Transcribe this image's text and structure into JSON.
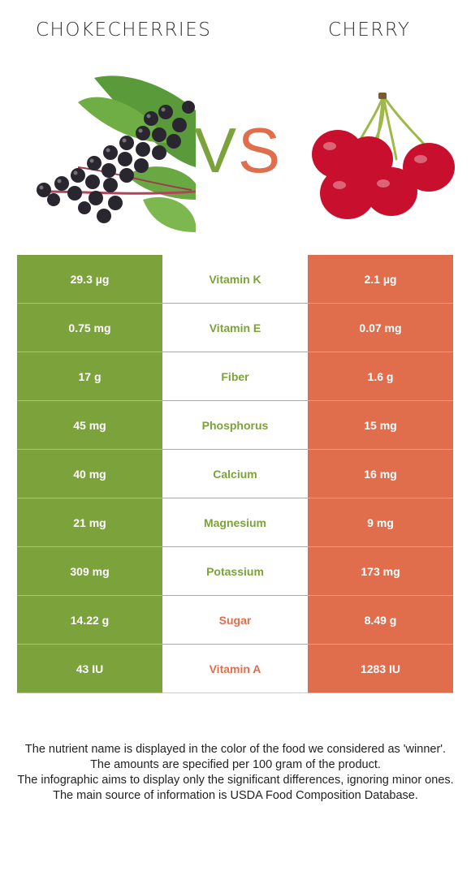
{
  "header": {
    "left_food": "CHOKECHERRIES",
    "right_food": "CHERRY",
    "vs_v": "V",
    "vs_s": "S"
  },
  "colors": {
    "winner_left": "#7ba23b",
    "winner_right": "#e06e4d"
  },
  "images": {
    "left": "chokecherries-photo",
    "right": "cherry-photo"
  },
  "nutrients": [
    {
      "left": "29.3 µg",
      "name": "Vitamin K",
      "right": "2.1 µg",
      "winner": "left"
    },
    {
      "left": "0.75 mg",
      "name": "Vitamin E",
      "right": "0.07 mg",
      "winner": "left"
    },
    {
      "left": "17 g",
      "name": "Fiber",
      "right": "1.6 g",
      "winner": "left"
    },
    {
      "left": "45 mg",
      "name": "Phosphorus",
      "right": "15 mg",
      "winner": "left"
    },
    {
      "left": "40 mg",
      "name": "Calcium",
      "right": "16 mg",
      "winner": "left"
    },
    {
      "left": "21 mg",
      "name": "Magnesium",
      "right": "9 mg",
      "winner": "left"
    },
    {
      "left": "309 mg",
      "name": "Potassium",
      "right": "173 mg",
      "winner": "left"
    },
    {
      "left": "14.22 g",
      "name": "Sugar",
      "right": "8.49 g",
      "winner": "right"
    },
    {
      "left": "43 IU",
      "name": "Vitamin A",
      "right": "1283 IU",
      "winner": "right"
    }
  ],
  "footnote": [
    "The nutrient name is displayed in the color of the food we considered as 'winner'.",
    "The amounts are specified per 100 gram of the product.",
    "The infographic aims to display only the significant differences, ignoring minor ones.",
    "The main source of information is USDA Food Composition Database."
  ]
}
